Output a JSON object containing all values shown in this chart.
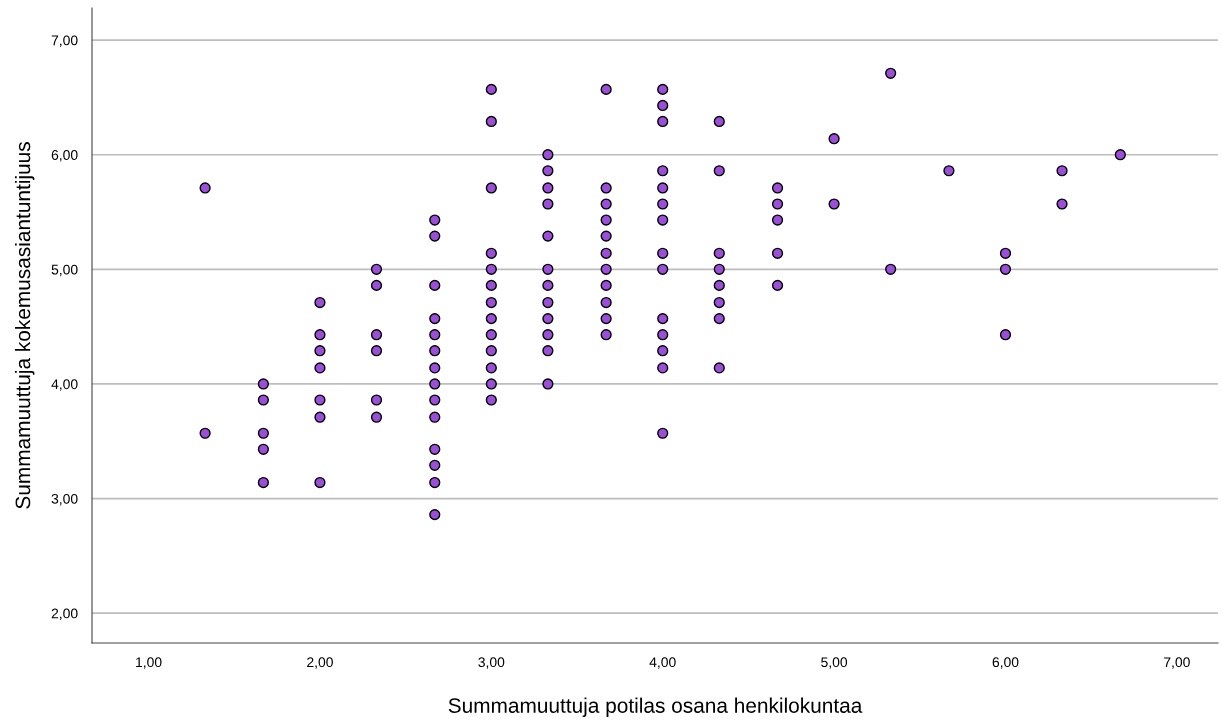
{
  "chart_data": {
    "type": "scatter",
    "xlabel": "Summamuuttuja potilas osana henkilokuntaa",
    "ylabel": "Summamuuttuja kokemusasiantuntijuus",
    "x": [
      1.33,
      1.33,
      1.67,
      1.67,
      1.67,
      1.67,
      1.67,
      2.0,
      2.0,
      2.0,
      2.0,
      2.0,
      2.0,
      2.0,
      2.33,
      2.33,
      2.33,
      2.33,
      2.33,
      2.33,
      2.67,
      2.67,
      2.67,
      2.67,
      2.67,
      2.67,
      2.67,
      2.67,
      2.67,
      2.67,
      2.67,
      2.67,
      2.67,
      2.67,
      3.0,
      3.0,
      3.0,
      3.0,
      3.0,
      3.0,
      3.0,
      3.0,
      3.0,
      3.0,
      3.0,
      3.0,
      3.0,
      3.33,
      3.33,
      3.33,
      3.33,
      3.33,
      3.33,
      3.33,
      3.33,
      3.33,
      3.33,
      3.33,
      3.33,
      3.67,
      3.67,
      3.67,
      3.67,
      3.67,
      3.67,
      3.67,
      3.67,
      3.67,
      3.67,
      3.67,
      4.0,
      4.0,
      4.0,
      4.0,
      4.0,
      4.0,
      4.0,
      4.0,
      4.0,
      4.0,
      4.0,
      4.0,
      4.0,
      4.0,
      4.33,
      4.33,
      4.33,
      4.33,
      4.33,
      4.33,
      4.33,
      4.33,
      4.67,
      4.67,
      4.67,
      4.67,
      4.67,
      5.0,
      5.0,
      5.33,
      5.33,
      5.67,
      6.0,
      6.0,
      6.0,
      6.33,
      6.33,
      6.67
    ],
    "values": [
      5.71,
      3.57,
      4.0,
      3.86,
      3.57,
      3.43,
      3.14,
      4.71,
      4.43,
      4.29,
      4.14,
      3.86,
      3.71,
      3.14,
      5.0,
      4.86,
      4.43,
      4.29,
      3.86,
      3.71,
      5.43,
      5.29,
      4.86,
      4.57,
      4.43,
      4.29,
      4.14,
      4.0,
      3.86,
      3.71,
      3.43,
      3.29,
      3.14,
      2.86,
      6.57,
      6.29,
      5.71,
      5.14,
      5.0,
      4.86,
      4.71,
      4.57,
      4.43,
      4.29,
      4.14,
      4.0,
      3.86,
      6.0,
      5.86,
      5.71,
      5.57,
      5.29,
      5.0,
      4.86,
      4.71,
      4.57,
      4.43,
      4.29,
      4.0,
      6.57,
      5.71,
      5.57,
      5.43,
      5.29,
      5.14,
      5.0,
      4.86,
      4.71,
      4.57,
      4.43,
      6.57,
      6.43,
      6.29,
      5.86,
      5.71,
      5.57,
      5.43,
      5.14,
      5.0,
      4.57,
      4.43,
      4.29,
      4.14,
      3.57,
      6.29,
      5.86,
      5.14,
      5.0,
      4.86,
      4.71,
      4.57,
      4.14,
      5.71,
      5.57,
      5.43,
      5.14,
      4.86,
      6.14,
      5.57,
      6.71,
      5.0,
      5.86,
      5.14,
      5.0,
      4.43,
      5.86,
      5.57,
      6.0
    ],
    "color": "#9b4fd8",
    "marker": "circle",
    "grid": "y",
    "xlim": [
      0.67,
      7.24
    ],
    "ylim": [
      1.74,
      7.28
    ],
    "xticks": [
      {
        "value": 1,
        "label": "1,00"
      },
      {
        "value": 2,
        "label": "2,00"
      },
      {
        "value": 3,
        "label": "3,00"
      },
      {
        "value": 4,
        "label": "4,00"
      },
      {
        "value": 5,
        "label": "5,00"
      },
      {
        "value": 6,
        "label": "6,00"
      },
      {
        "value": 7,
        "label": "7,00"
      }
    ],
    "yticks": [
      {
        "value": 2,
        "label": "2,00"
      },
      {
        "value": 3,
        "label": "3,00"
      },
      {
        "value": 4,
        "label": "4,00"
      },
      {
        "value": 5,
        "label": "5,00"
      },
      {
        "value": 6,
        "label": "6,00"
      },
      {
        "value": 7,
        "label": "7,00"
      }
    ]
  }
}
